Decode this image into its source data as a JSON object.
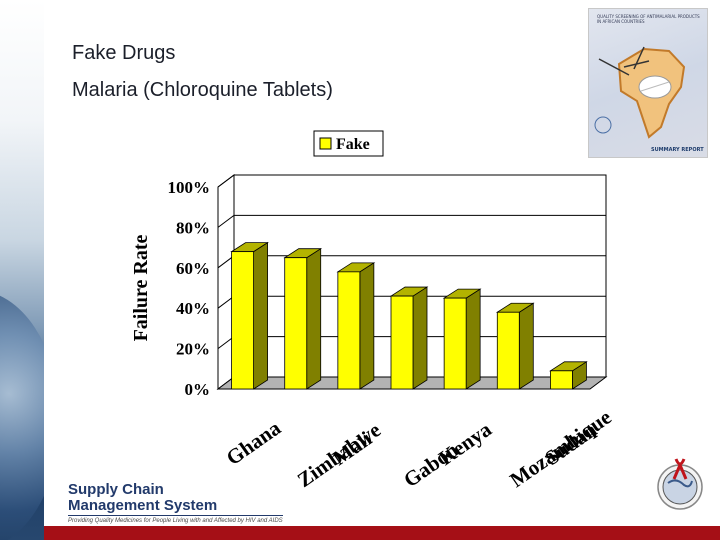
{
  "slide": {
    "title_line1": "Fake Drugs",
    "title_line2": "Malaria (Chloroquine Tablets)"
  },
  "cover_image": {
    "title_text": "QUALITY SCREENING OF ANTIMALARIAL PRODUCTS IN AFRICAN COUNTRIES",
    "report_text": "SUMMARY REPORT"
  },
  "logo": {
    "line1": "Supply Chain",
    "line2": "Management System",
    "tagline": "Providing Quality Medicines for People Living with and Affected by HIV and AIDS"
  },
  "colors": {
    "bar_front": "#ffff00",
    "bar_side": "#808000",
    "bar_top": "#b3b300",
    "floor": "#b3b3b3",
    "bottom_bar": "#a50f16",
    "title_text": "#1b1f2a"
  },
  "chart_data": {
    "type": "bar",
    "style": "3d",
    "categories": [
      "Ghana",
      "Zimbabwe",
      "Mali",
      "Gabon",
      "Kenya",
      "Mozambique",
      "Sudan"
    ],
    "series": [
      {
        "name": "Fake",
        "values": [
          68,
          65,
          58,
          46,
          45,
          38,
          9
        ]
      }
    ],
    "ylabel": "Failure Rate",
    "xlabel": "",
    "ylim": [
      0,
      100
    ],
    "yticks": [
      "0%",
      "20%",
      "40%",
      "60%",
      "80%",
      "100%"
    ],
    "legend_position": "top",
    "grid": true
  }
}
